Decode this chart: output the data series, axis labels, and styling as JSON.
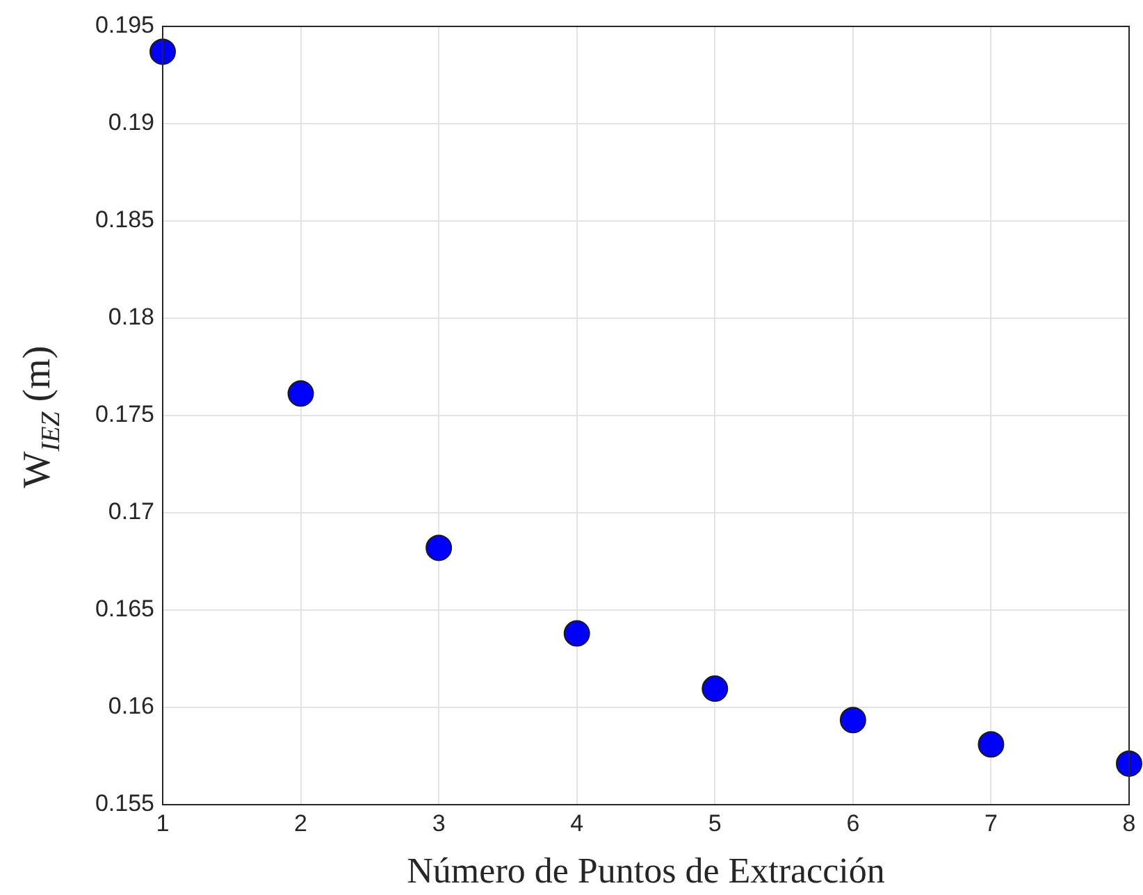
{
  "chart_data": {
    "type": "scatter",
    "xlabel": "Número de Puntos de Extracción",
    "ylabel": "W$_{IEZ}$ (m)",
    "x": [
      1,
      2,
      3,
      4,
      5,
      6,
      7,
      8
    ],
    "series": [
      {
        "color": "#0000ff",
        "values": [
          0.1937,
          0.17613,
          0.1682,
          0.1638,
          0.16096,
          0.15935,
          0.1581,
          0.15711
        ]
      }
    ],
    "xlim": [
      1,
      8
    ],
    "xticks": [
      1,
      2,
      3,
      4,
      5,
      6,
      7,
      8
    ],
    "ylim": [
      0.155,
      0.195
    ],
    "yticks": [
      0.155,
      0.16,
      0.165,
      0.17,
      0.175,
      0.18,
      0.185,
      0.19,
      0.195
    ],
    "grid": true,
    "marker": "circle",
    "legend": false
  }
}
